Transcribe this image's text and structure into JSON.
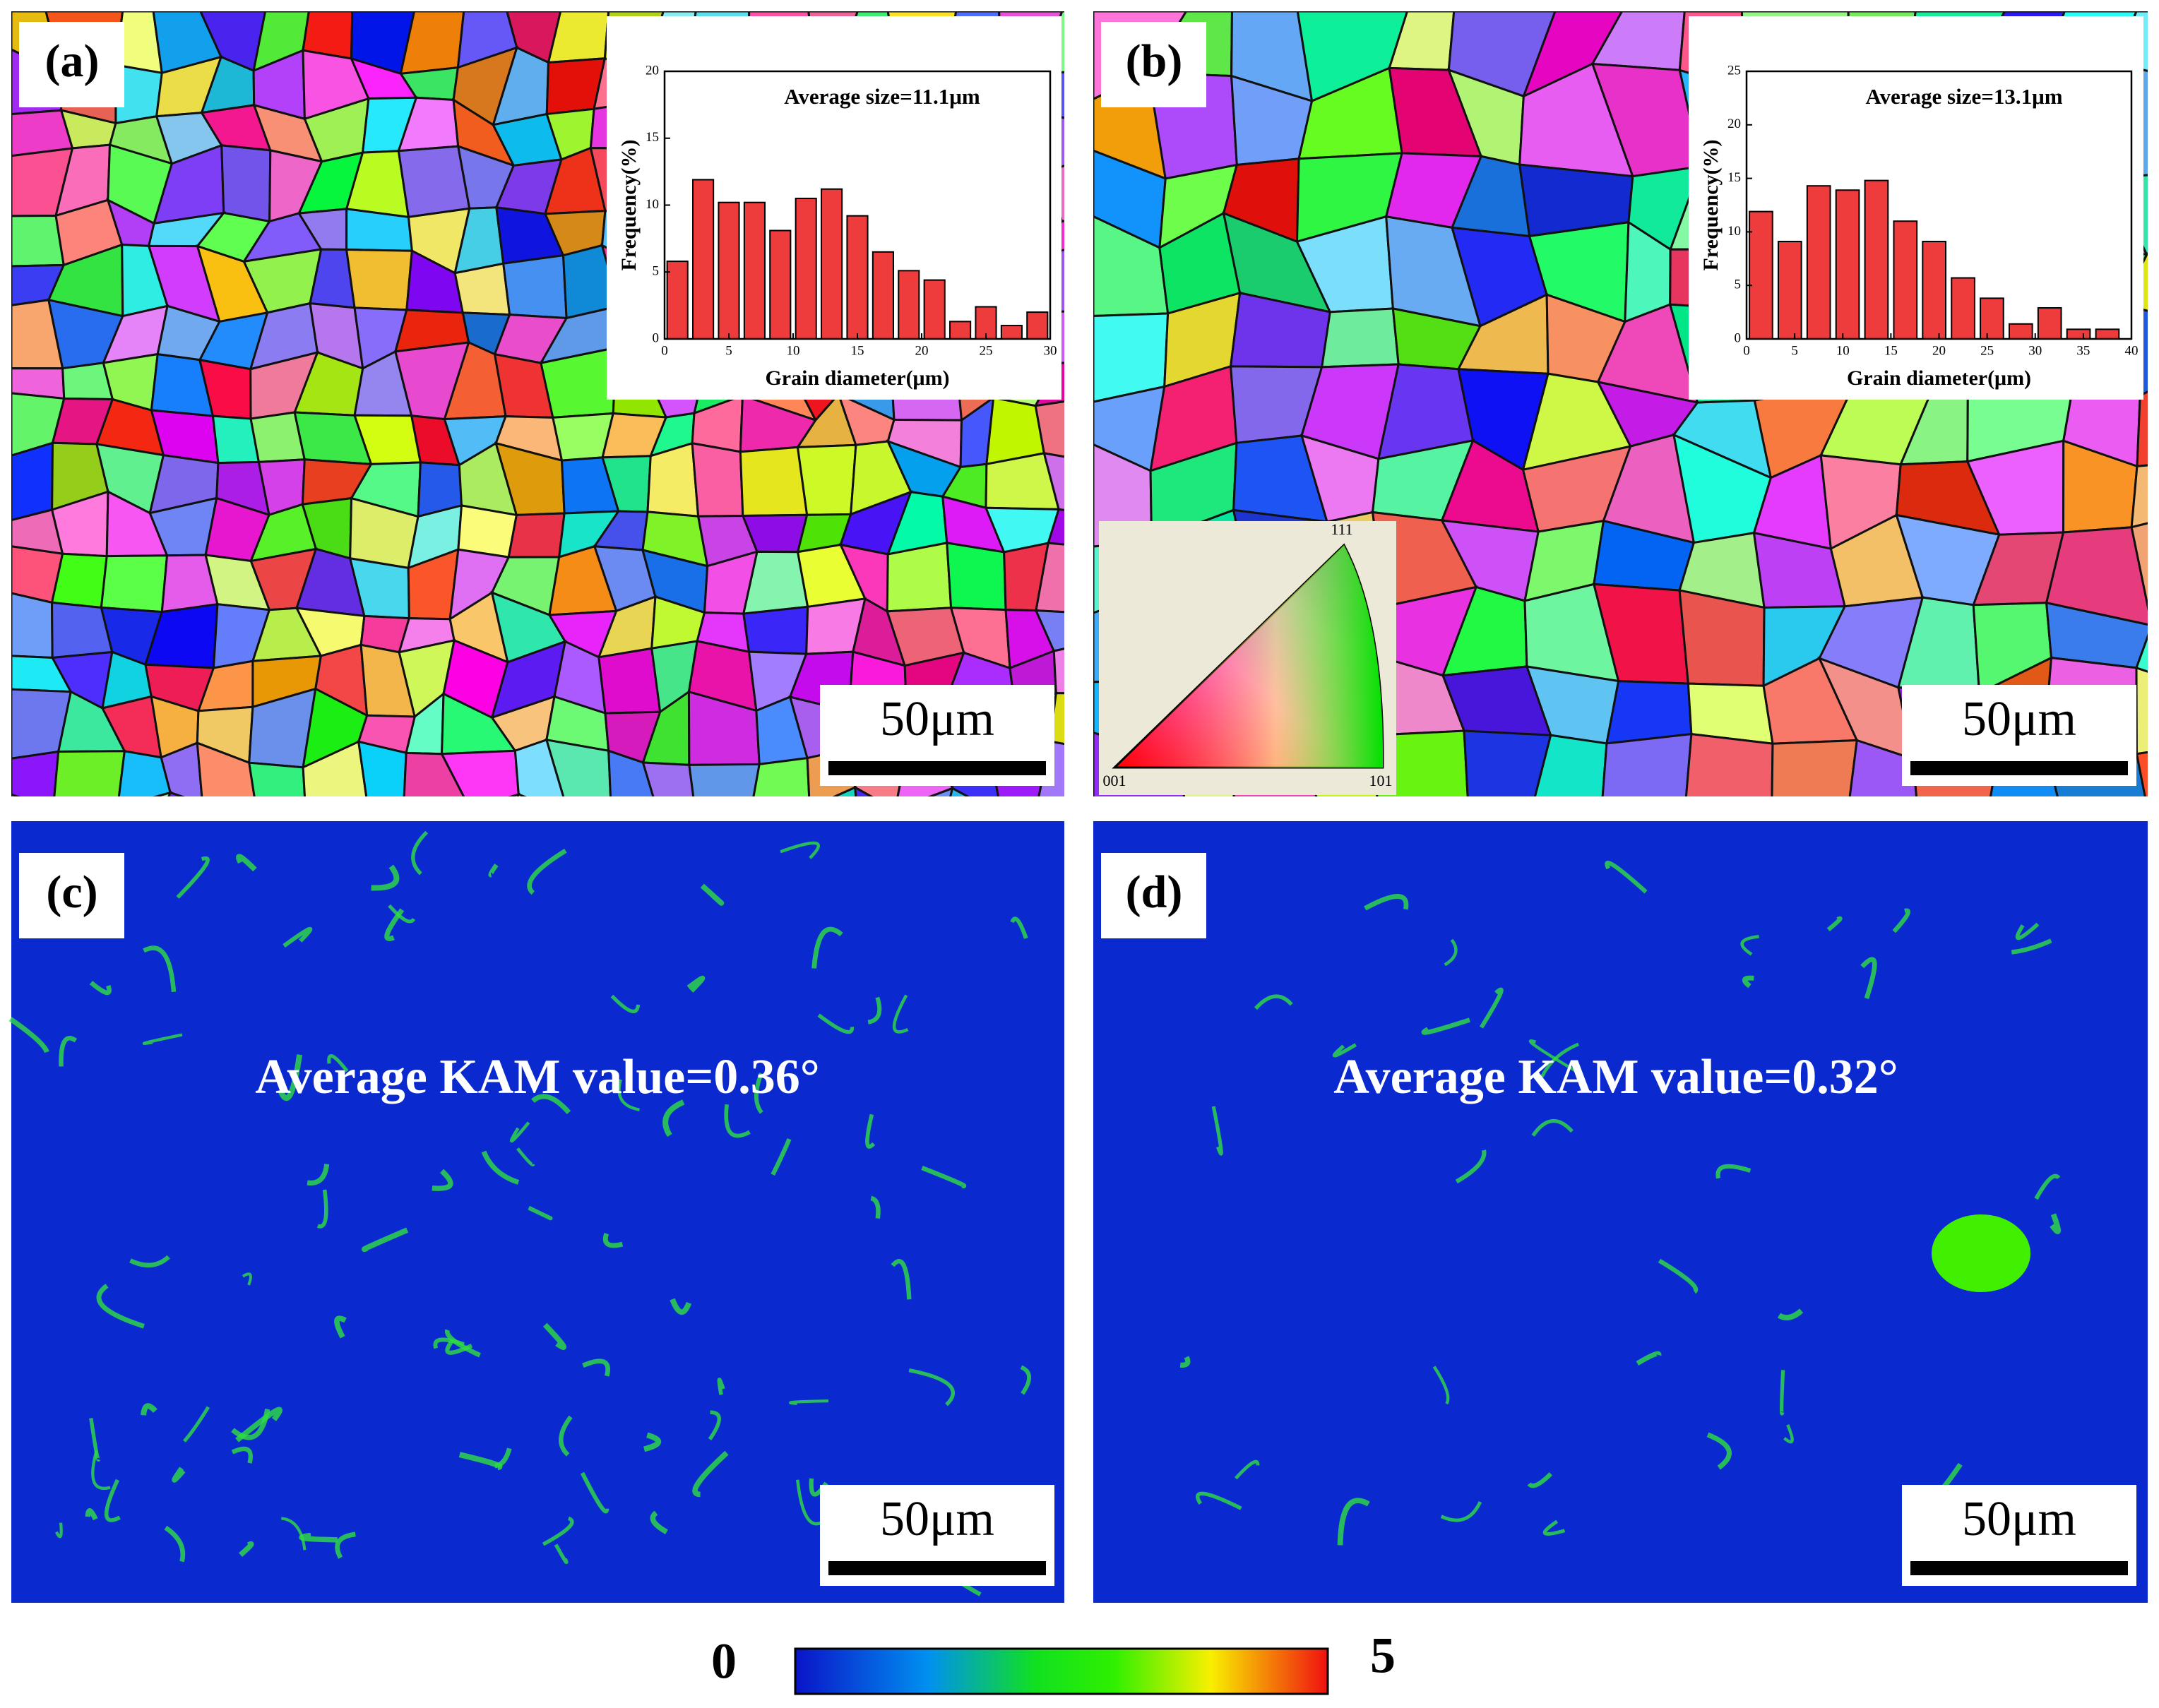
{
  "panels": [
    {
      "label": "(a)",
      "scale_bar": "50μm"
    },
    {
      "label": "(b)",
      "scale_bar": "50μm"
    },
    {
      "label": "(c)",
      "scale_bar": "50μm",
      "annotation": "Average KAM value=0.36°"
    },
    {
      "label": "(d)",
      "scale_bar": "50μm",
      "annotation": "Average KAM value=0.32°"
    }
  ],
  "ipf_legend": {
    "top": "111",
    "left": "001",
    "right": "101"
  },
  "colorbar": {
    "min": 0,
    "max": 5
  },
  "chart_data": [
    {
      "type": "histogram",
      "annotation": "Average size=11.1μm",
      "xlabel": "Grain diameter(μm)",
      "ylabel": "Frequency(%)",
      "bins": [
        0,
        2,
        4,
        6,
        8,
        10,
        12,
        14,
        16,
        18,
        20,
        22,
        24,
        26,
        28,
        30
      ],
      "values": [
        5.8,
        11.9,
        10.2,
        10.2,
        8.1,
        10.5,
        11.2,
        9.2,
        6.5,
        5.1,
        4.4,
        1.3,
        2.4,
        1.0,
        2.0
      ],
      "color": "#ee3b3b",
      "xlim": [
        0,
        30
      ],
      "ylim": [
        0,
        20
      ],
      "xticks": [
        0,
        5,
        10,
        15,
        20,
        25,
        30
      ],
      "yticks": [
        0,
        5,
        10,
        15,
        20
      ]
    },
    {
      "type": "histogram",
      "annotation": "Average size=13.1μm",
      "xlabel": "Grain diameter(μm)",
      "ylabel": "Frequency(%)",
      "bins": [
        0,
        3,
        6,
        9,
        12,
        15,
        18,
        21,
        24,
        27,
        30,
        33,
        36,
        39
      ],
      "values": [
        11.9,
        9.1,
        14.3,
        13.9,
        14.8,
        11.0,
        9.1,
        5.7,
        3.8,
        1.4,
        2.9,
        0.9,
        0.9
      ],
      "color": "#ee3b3b",
      "xlim": [
        0,
        40
      ],
      "ylim": [
        0,
        25
      ],
      "xticks": [
        0,
        5,
        10,
        15,
        20,
        25,
        30,
        35,
        40
      ],
      "yticks": [
        0,
        5,
        10,
        15,
        20,
        25
      ]
    }
  ]
}
